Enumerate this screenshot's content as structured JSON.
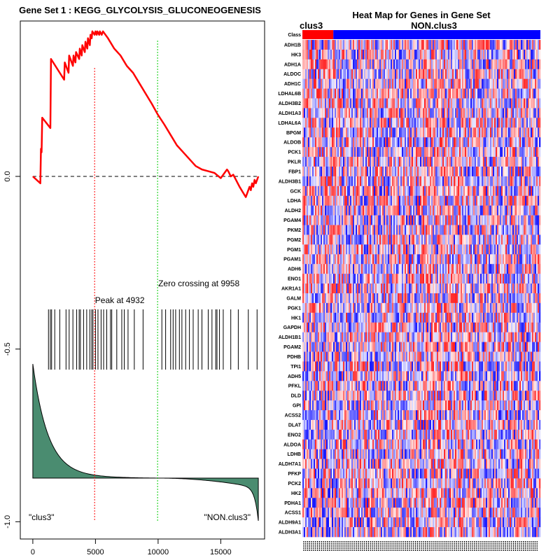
{
  "chart_data": [
    {
      "type": "line",
      "title": "Gene Set  1 : KEGG_GLYCOLYSIS_GLUCONEOGENESIS",
      "xlim": [
        -1000,
        18500
      ],
      "ylim": [
        -1.05,
        0.45
      ],
      "x_ticks": [
        0,
        5000,
        10000,
        15000
      ],
      "x_tick_labels": [
        "0",
        "5000",
        "10000",
        "15000"
      ],
      "y_ticks": [
        0.0,
        -0.5,
        -1.0
      ],
      "y_tick_labels": [
        "0.0",
        "-0.5",
        "-1.0"
      ],
      "series": [
        {
          "name": "running enrichment score",
          "color": "#ff0000",
          "x": [
            0,
            600,
            650,
            700,
            750,
            1400,
            1450,
            2500,
            2550,
            2850,
            2900,
            3200,
            3250,
            3400,
            3450,
            3700,
            3750,
            3900,
            3950,
            4150,
            4200,
            4350,
            4400,
            4550,
            4600,
            4700,
            4750,
            4932,
            5000,
            5100,
            5150,
            5300,
            5350,
            5500,
            5600,
            6000,
            6500,
            7000,
            7500,
            8000,
            8500,
            9000,
            9500,
            9958,
            10500,
            11000,
            11500,
            12000,
            12500,
            13000,
            13500,
            14000,
            14500,
            15000,
            15500,
            15600,
            15800,
            16000,
            16500,
            17000,
            17300,
            17400,
            17500,
            17600,
            17700,
            17800,
            17900,
            18000
          ],
          "values": [
            0.0,
            -0.02,
            0.08,
            0.07,
            0.17,
            0.14,
            0.34,
            0.28,
            0.33,
            0.3,
            0.35,
            0.32,
            0.35,
            0.33,
            0.36,
            0.34,
            0.37,
            0.35,
            0.38,
            0.36,
            0.39,
            0.37,
            0.4,
            0.38,
            0.41,
            0.4,
            0.42,
            0.41,
            0.42,
            0.41,
            0.42,
            0.41,
            0.42,
            0.41,
            0.42,
            0.4,
            0.37,
            0.35,
            0.32,
            0.3,
            0.27,
            0.24,
            0.21,
            0.18,
            0.15,
            0.12,
            0.09,
            0.07,
            0.05,
            0.03,
            0.02,
            0.015,
            0.01,
            -0.005,
            0.02,
            0.015,
            0.0,
            0.005,
            -0.03,
            -0.06,
            -0.03,
            -0.04,
            -0.02,
            -0.03,
            -0.01,
            -0.02,
            -0.01,
            0.0
          ]
        }
      ],
      "hit_positions": [
        1250,
        1400,
        1500,
        1750,
        2150,
        2650,
        2900,
        3200,
        3500,
        3700,
        3800,
        4050,
        4300,
        4550,
        4700,
        4800,
        5000,
        5200,
        5450,
        5650,
        5900,
        6200,
        6300,
        6700,
        7100,
        7300,
        7600,
        8100,
        8800,
        10300,
        10600,
        11000,
        11200,
        11400,
        11700,
        11900,
        12200,
        12500,
        12800,
        13200,
        13500,
        14000,
        14300,
        14600,
        14700,
        14900,
        15200,
        15800,
        16400,
        17200,
        17900
      ],
      "peak": {
        "x": 4932,
        "label": "Peak at 4932",
        "color": "#ff0000"
      },
      "zero_crossing": {
        "x": 9958,
        "label": "Zero crossing at 9958",
        "color": "#00cc00"
      },
      "left_label": "\"clus3\"",
      "right_label": "\"NON.clus3\"",
      "ranked_metric_color": "#4a8c70"
    },
    {
      "type": "heatmap",
      "title": "Heat Map for Genes in Gene Set",
      "class_row_label": "Class",
      "groups": [
        {
          "name": "clus3",
          "color": "#ff0000",
          "fraction": 0.13
        },
        {
          "name": "NON.clus3",
          "color": "#0000ff",
          "fraction": 0.87
        }
      ],
      "genes": [
        "ADH1B",
        "HK3",
        "ADH1A",
        "ALDOC",
        "ADH1C",
        "LDHAL6B",
        "ALDH3B2",
        "ALDH1A3",
        "LDHAL6A",
        "BPGM",
        "ALDOB",
        "PCK1",
        "PKLR",
        "FBP1",
        "ALDH3B1",
        "GCK",
        "LDHA",
        "ALDH2",
        "PGAM4",
        "PKM2",
        "PGM2",
        "PGM1",
        "PGAM1",
        "ADH6",
        "ENO1",
        "AKR1A1",
        "GALM",
        "PGK1",
        "HK1",
        "GAPDH",
        "ALDH1B1",
        "PGAM2",
        "PDHB",
        "TPI1",
        "ADH5",
        "PFKL",
        "DLD",
        "GPI",
        "ACSS2",
        "DLAT",
        "ENO2",
        "ALDOA",
        "LDHB",
        "ALDH7A1",
        "PFKP",
        "PCK2",
        "HK2",
        "PDHA1",
        "ACSS1",
        "ALDH9A1",
        "ALDH3A1"
      ]
    }
  ]
}
